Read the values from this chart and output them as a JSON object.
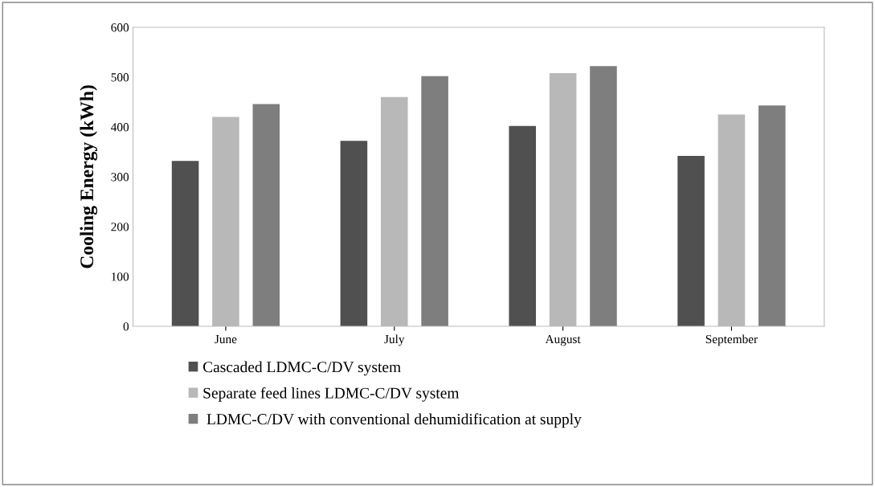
{
  "chart_data": {
    "type": "bar",
    "ylabel": "Cooling Energy (kWh)",
    "categories": [
      "June",
      "July",
      "August",
      "September"
    ],
    "series": [
      {
        "name": "Cascaded LDMC-C/DV system",
        "color": "#505050",
        "values": [
          332,
          372,
          402,
          342
        ]
      },
      {
        "name": "Separate feed lines LDMC-C/DV system",
        "color": "#b8b8b8",
        "values": [
          420,
          460,
          508,
          425
        ]
      },
      {
        "name": " LDMC-C/DV with conventional dehumidification at supply",
        "color": "#7e7e7e",
        "values": [
          446,
          502,
          522,
          443
        ]
      }
    ],
    "ylim": [
      0,
      600
    ],
    "yticks": [
      0,
      100,
      200,
      300,
      400,
      500,
      600
    ],
    "grid": false,
    "legend": "bottom"
  }
}
